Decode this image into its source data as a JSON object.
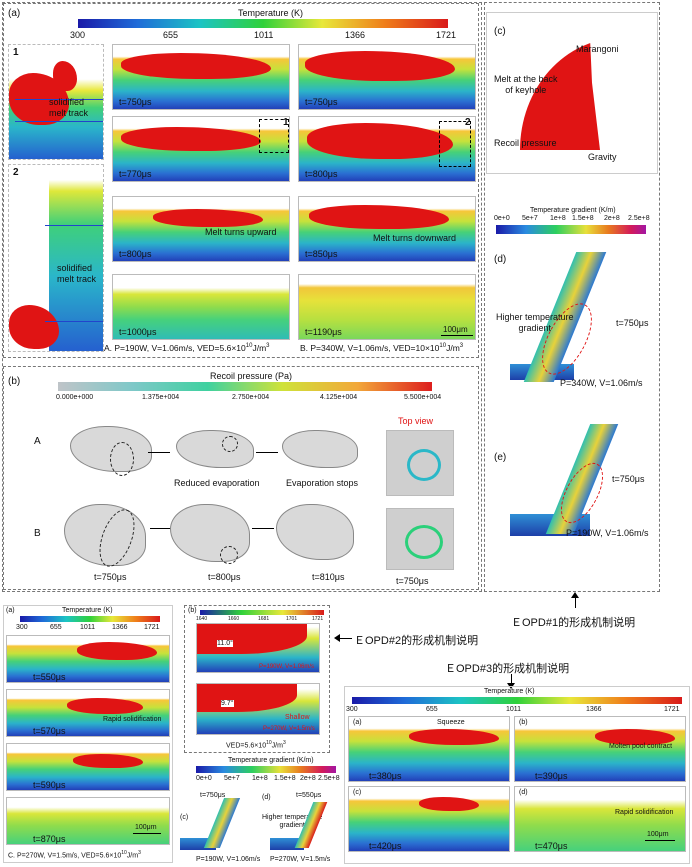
{
  "colors": {
    "melt": "#e01414",
    "cooling_blue": "#2240b8",
    "annotation_red": "#e01414"
  },
  "panel_a": {
    "label": "(a)",
    "colorbar_title": "Temperature (K)",
    "ticks": [
      "300",
      "655",
      "1011",
      "1366",
      "1721"
    ],
    "inset1": {
      "num": "1",
      "text": "solidified\nmelt track"
    },
    "inset2": {
      "num": "2",
      "text": "solidified\nmelt track"
    },
    "colA": {
      "times": [
        "t=750μs",
        "t=770μs",
        "t=800μs",
        "t=1000μs"
      ],
      "annotation": "Melt turns upward",
      "caption": "A. P=190W, V=1.06m/s, VED=5.6×10",
      "caption_exp": "10",
      "caption_unit": "J/m",
      "caption_unit_exp": "3",
      "marker": "1"
    },
    "colB": {
      "times": [
        "t=750μs",
        "t=800μs",
        "t=850μs",
        "t=1190μs"
      ],
      "annotation": "Melt turns downward",
      "caption": "B. P=340W, V=1.06m/s, VED=10×10",
      "caption_exp": "10",
      "caption_unit": "J/m",
      "caption_unit_exp": "3",
      "marker": "2",
      "scalebar": "100μm"
    }
  },
  "panel_b": {
    "label": "(b)",
    "colorbar_title": "Recoil pressure (Pa)",
    "ticks": [
      "0.000e+000",
      "1.375e+004",
      "2.750e+004",
      "4.125e+004",
      "5.500e+004"
    ],
    "rowA": "A",
    "rowB": "B",
    "captionA1": "Reduced  evaporation",
    "captionA2": "Evaporation stops",
    "times": [
      "t=750μs",
      "t=800μs",
      "t=810μs"
    ],
    "top_view": "Top view",
    "top_view_time": "t=750μs"
  },
  "panel_c": {
    "label": "(c)",
    "marangoni": "Marangoni",
    "melt_back": "Melt at the back\nof keyhole",
    "recoil": "Recoil pressure",
    "gravity": "Gravity"
  },
  "gradient_bar": {
    "title": "Temperature gradient (K/m)",
    "ticks": [
      "0e+0",
      "5e+7",
      "1e+8",
      "1.5e+8",
      "2e+8",
      "2.5e+8"
    ]
  },
  "panel_d": {
    "label": "(d)",
    "note": "Higher temperature\ngradient",
    "time": "t=750μs",
    "params": "P=340W, V=1.06m/s"
  },
  "panel_e": {
    "label": "(e)",
    "time": "t=750μs",
    "params": "P=190W, V=1.06m/s"
  },
  "callouts": {
    "eopd1": "ＥOPD#1的形成机制说明",
    "eopd2": "ＥOPD#2的形成机制说明",
    "eopd3": "ＥOPD#3的形成机制说明"
  },
  "bottom_left": {
    "a_label": "(a)",
    "colorbar_title": "Temperature (K)",
    "ticks": [
      "300",
      "655",
      "1011",
      "1366",
      "1721"
    ],
    "times": [
      "t=550μs",
      "t=570μs",
      "t=590μs",
      "t=870μs"
    ],
    "note2": "Rapid solidification",
    "scalebar": "100μm",
    "caption": "C. P=270W, V=1.5m/s, VED=5.6×10",
    "caption_exp": "10",
    "caption_unit": "J/m",
    "caption_unit_exp": "3"
  },
  "bottom_mid": {
    "b_label": "(b)",
    "temp_ticks": [
      "1640",
      "1660",
      "1681",
      "1701",
      "1721"
    ],
    "angle1": "11.0°",
    "angle2": "9.7°",
    "params1": "P=190W, V=1.06m/s",
    "params2": "P=270W, V=1.5m/s",
    "shallow": "Shallow",
    "ved": "VED=5.6×10",
    "ved_exp": "10",
    "ved_unit": "J/m",
    "ved_unit_exp": "3",
    "grad_title": "Temperature gradient (K/m)",
    "grad_ticks": [
      "0e+0",
      "5e+7",
      "1e+8",
      "1.5e+8",
      "2e+8",
      "2.5e+8"
    ],
    "c_label": "(c)",
    "c_time": "t=750μs",
    "c_params": "P=190W, V=1.06m/s",
    "d_label": "(d)",
    "d_time": "t=550μs",
    "d_note": "Higher temperature\ngradient",
    "d_params": "P=270W, V=1.5m/s"
  },
  "bottom_right": {
    "colorbar_title": "Temperature (K)",
    "ticks": [
      "300",
      "655",
      "1011",
      "1366",
      "1721"
    ],
    "a_label": "(a)",
    "b_label": "(b)",
    "c_label": "(c)",
    "d_label": "(d)",
    "squeeze": "Squeeze",
    "contract": "Molten pool contract",
    "rapid": "Rapid solidification",
    "times": [
      "t=380μs",
      "t=390μs",
      "t=420μs",
      "t=470μs"
    ],
    "scalebar": "100μm"
  }
}
